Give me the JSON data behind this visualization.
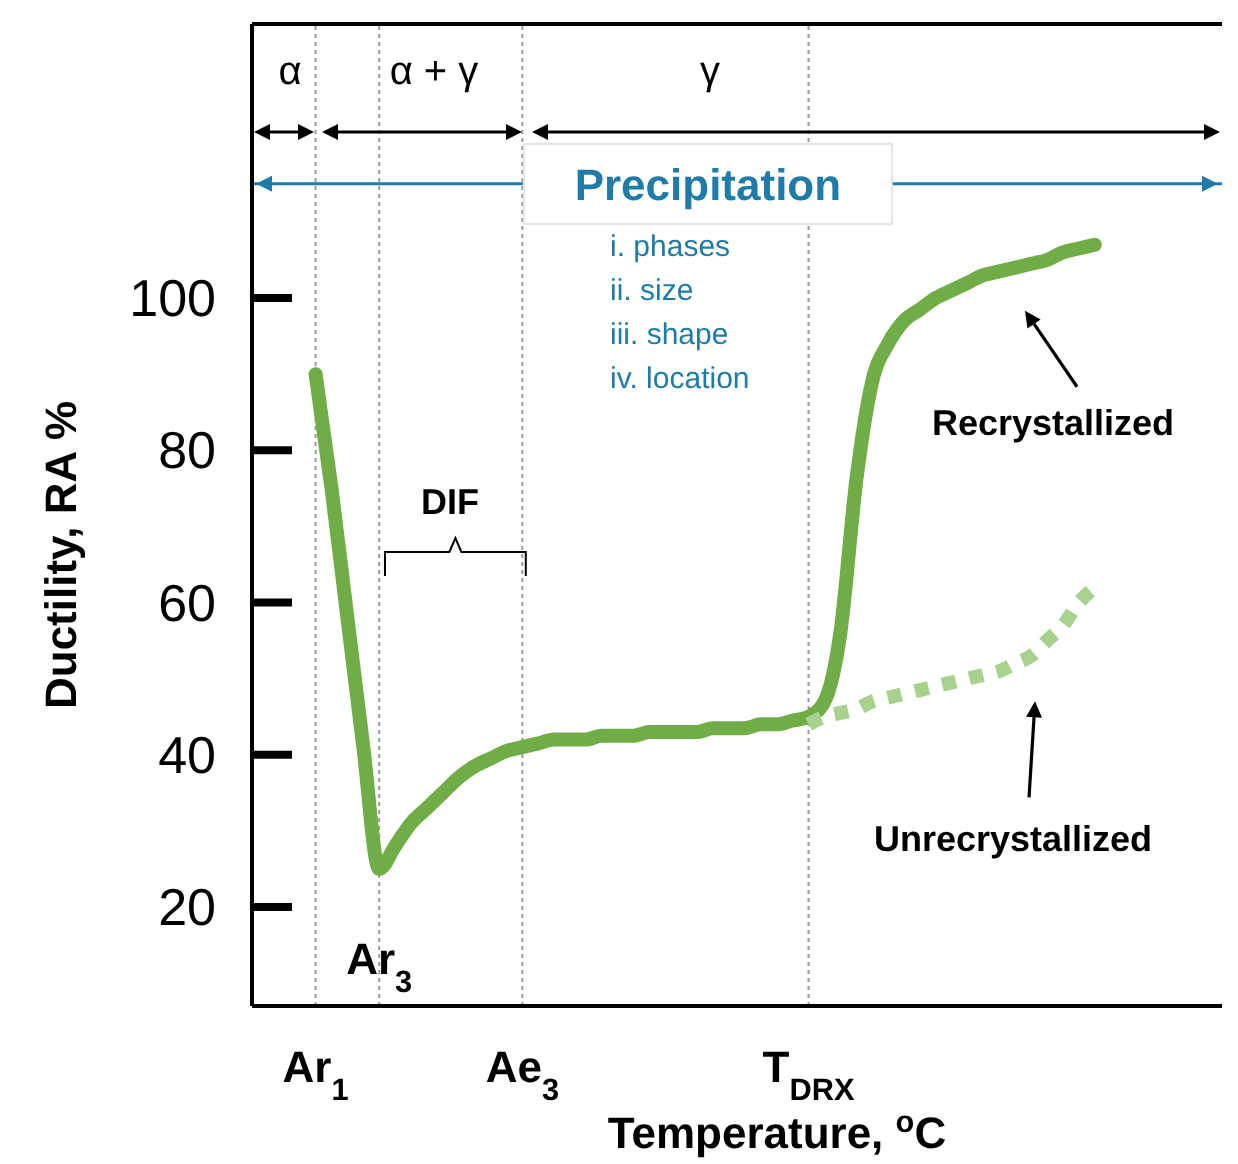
{
  "chart_data": {
    "type": "line",
    "xlabel": "Temperature, $^{o}$C",
    "ylabel": "Ductility, RA %",
    "categories": [
      null,
      null,
      null,
      null,
      "Ar$_{1}$",
      null,
      null,
      null,
      "Ar$_{3}$",
      null,
      null,
      null,
      null,
      null,
      null,
      null,
      null,
      "Ae$_{3}$",
      null,
      null,
      null,
      null,
      null,
      null,
      null,
      null,
      null,
      null,
      null,
      null,
      null,
      null,
      null,
      null,
      null,
      "T$_{DRX}$",
      null,
      null,
      null,
      null,
      null,
      null,
      null,
      null,
      null,
      null,
      null,
      null,
      null,
      null,
      null,
      null,
      null,
      null,
      null,
      null,
      null,
      null,
      null,
      null,
      null,
      null
    ],
    "ylim": [
      7,
      136
    ],
    "yticks": [
      20,
      40,
      60,
      80,
      100
    ],
    "grid": false,
    "line_style": "solid",
    "marker": "none",
    "series": [
      {
        "name": "Recrystallized",
        "color": "#70ad47",
        "values": [
          null,
          null,
          null,
          null,
          90,
          75,
          58,
          41,
          25,
          28,
          31,
          33,
          35,
          37,
          38.5,
          39.5,
          40.5,
          41,
          41.5,
          42,
          42,
          42,
          42.5,
          42.5,
          42.5,
          43,
          43,
          43,
          43,
          43.5,
          43.5,
          43.5,
          44,
          44,
          44.5,
          45,
          47,
          56,
          76,
          89,
          94,
          97,
          98.5,
          100,
          101,
          102,
          103,
          103.5,
          104,
          104.5,
          105,
          106,
          106.5,
          107,
          null,
          null,
          null,
          null,
          null,
          null,
          null,
          null
        ]
      },
      {
        "name": "Unrecrystallized",
        "color": "#a9d18e",
        "line_style": "dotted",
        "values": [
          null,
          null,
          null,
          null,
          null,
          null,
          null,
          null,
          null,
          null,
          null,
          null,
          null,
          null,
          null,
          null,
          null,
          null,
          null,
          null,
          null,
          null,
          null,
          null,
          null,
          null,
          null,
          null,
          null,
          null,
          null,
          null,
          null,
          null,
          null,
          44,
          45,
          45.5,
          46,
          47,
          47.5,
          48,
          48.5,
          49,
          49.5,
          50,
          50.5,
          51,
          52,
          53,
          55,
          57,
          60,
          62,
          null,
          null,
          null,
          null,
          null,
          null,
          null,
          null
        ]
      }
    ],
    "ref_lines": [
      {
        "axis": "x",
        "value": "Ar$_{1}$",
        "label": null,
        "color": "#999999",
        "line_style": "dotted"
      },
      {
        "axis": "x",
        "value": "Ar$_{3}$",
        "label": null,
        "color": "#999999",
        "line_style": "dotted"
      },
      {
        "axis": "x",
        "value": "Ae$_{3}$",
        "label": null,
        "color": "#999999",
        "line_style": "dotted"
      },
      {
        "axis": "x",
        "value": "T$_{DRX}$",
        "label": null,
        "color": "#999999",
        "line_style": "dotted"
      },
      {
        "axis": "y",
        "value": 115,
        "label": "Precipitation",
        "color": "#1f7ba8",
        "line_style": "solid"
      }
    ],
    "annotations": [
      "α",
      "α + γ",
      "γ",
      "i. phases",
      "ii. size",
      "iii. shape",
      "iv. location",
      "DIF"
    ]
  }
}
